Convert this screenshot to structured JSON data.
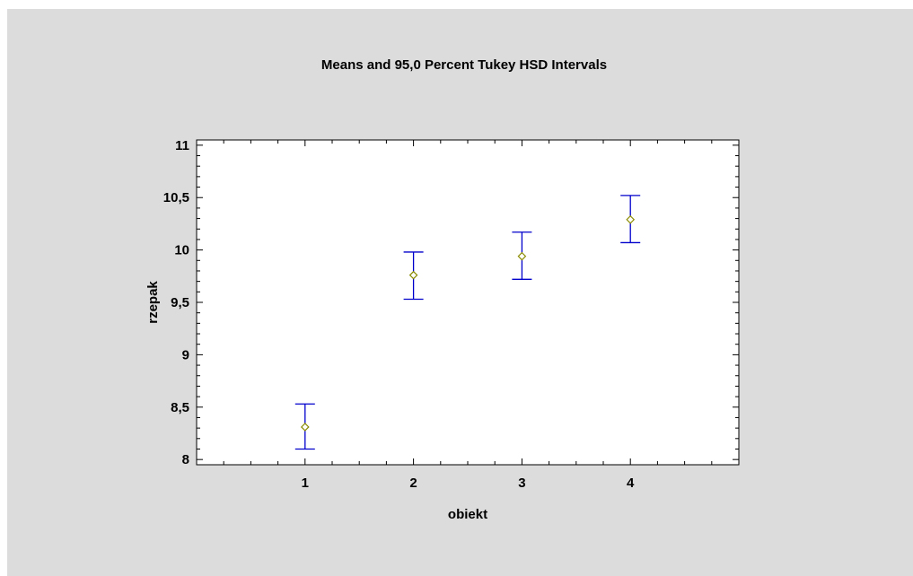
{
  "chart_data": {
    "type": "scatter",
    "title": "Means and 95,0 Percent Tukey HSD Intervals",
    "xlabel": "obiekt",
    "ylabel": "rzepak",
    "categories": [
      "1",
      "2",
      "3",
      "4"
    ],
    "xlim": [
      0,
      5
    ],
    "ylim": [
      7.95,
      11.05
    ],
    "yticks": [
      8,
      8.5,
      9,
      9.5,
      10,
      10.5,
      11
    ],
    "ytick_labels": [
      "8",
      "8,5",
      "9",
      "9,5",
      "10",
      "10,5",
      "11"
    ],
    "series": [
      {
        "means": [
          8.31,
          9.76,
          9.94,
          10.29
        ],
        "lower": [
          8.1,
          9.53,
          9.72,
          10.07
        ],
        "upper": [
          8.53,
          9.98,
          10.17,
          10.52
        ]
      }
    ],
    "grid": false,
    "colors": {
      "interval": "#0000cc",
      "marker": "#8b8b00",
      "background": "#dcdcdc",
      "plot_area": "#ffffff"
    }
  }
}
